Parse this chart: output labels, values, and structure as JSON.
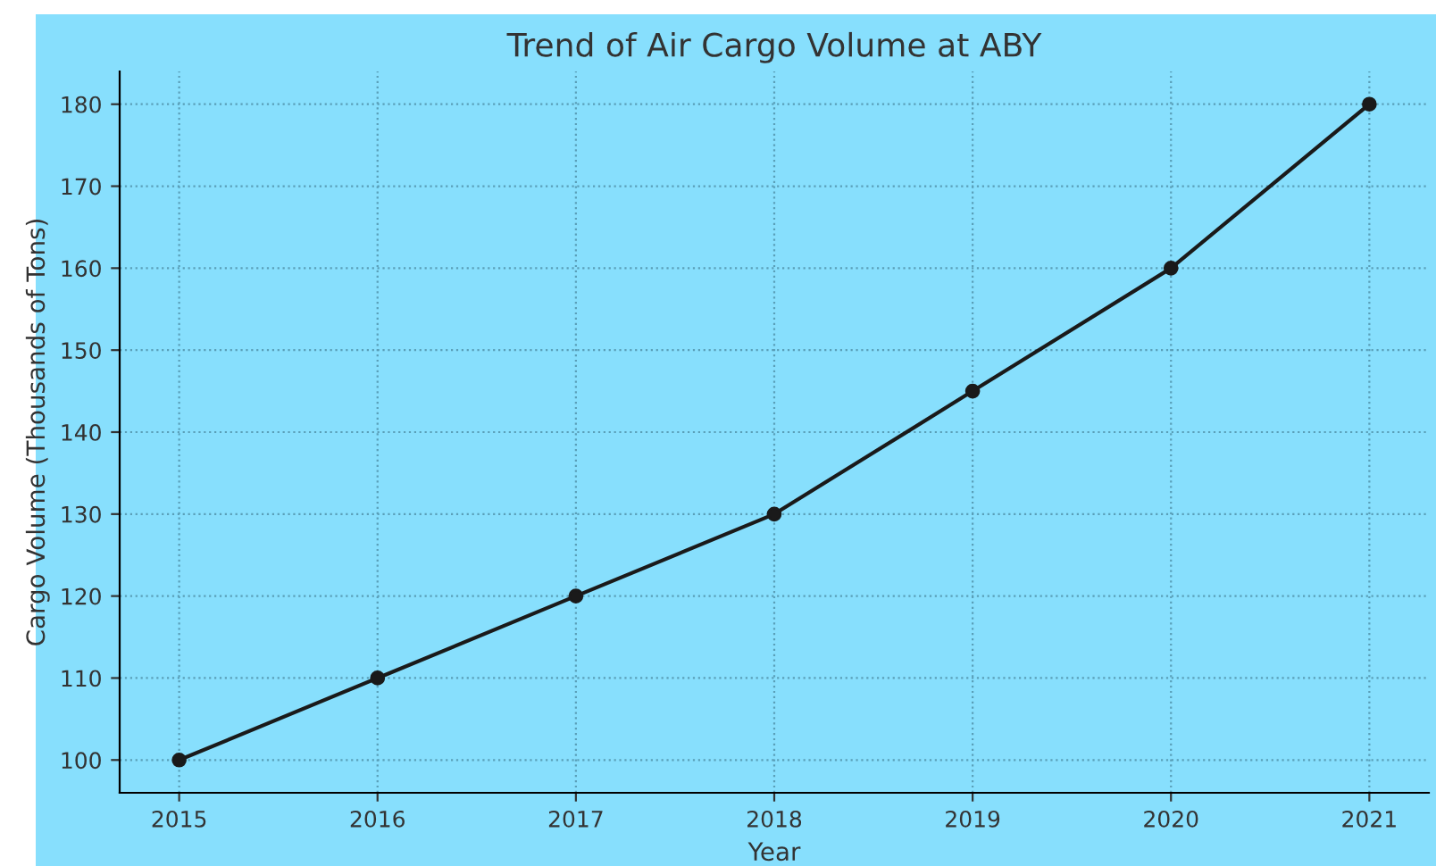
{
  "chart_data": {
    "type": "line",
    "title": "Trend of Air Cargo Volume at ABY",
    "xlabel": "Year",
    "ylabel": "Cargo Volume (Thousands of Tons)",
    "x": [
      2015,
      2016,
      2017,
      2018,
      2019,
      2020,
      2021
    ],
    "series": [
      {
        "color": "#1a1a1a",
        "values": [
          100,
          110,
          120,
          130,
          145,
          160,
          180
        ]
      }
    ],
    "xlim": [
      2014.7,
      2021.3
    ],
    "xticks": [
      2015,
      2016,
      2017,
      2018,
      2019,
      2020,
      2021
    ],
    "ylim": [
      96,
      184
    ],
    "yticks": [
      100,
      110,
      120,
      130,
      140,
      150,
      160,
      170,
      180
    ],
    "grid": true,
    "marker": "circle",
    "line_style": "solid"
  }
}
